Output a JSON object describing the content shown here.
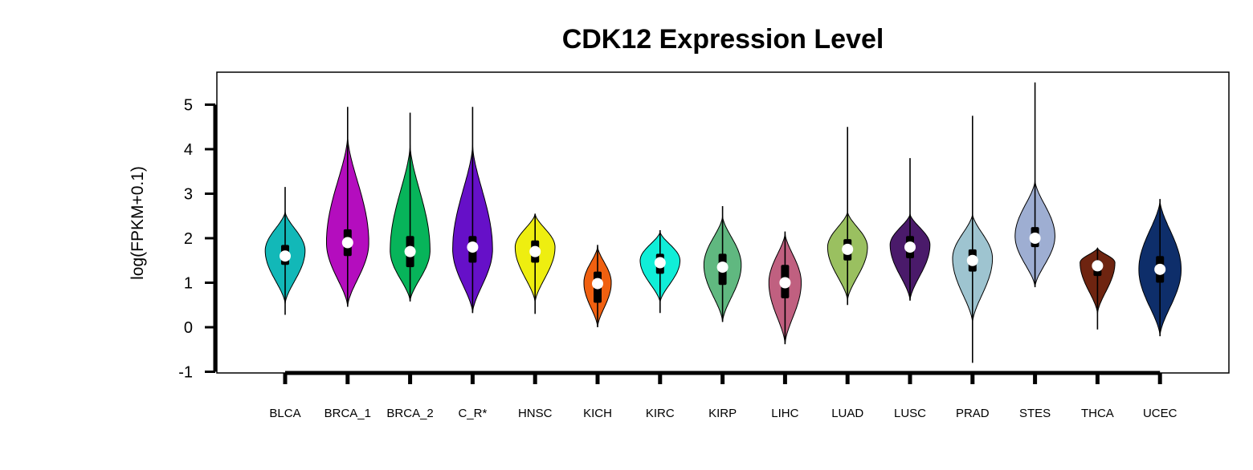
{
  "chart_data": {
    "type": "violin",
    "title": "CDK12 Expression Level",
    "xlabel": "",
    "ylabel": "log(FPKM+0.1)",
    "ylim": [
      -1,
      5
    ],
    "yticks": [
      -1,
      0,
      1,
      2,
      3,
      4,
      5
    ],
    "grid": false,
    "legend": "none",
    "categories": [
      "BLCA",
      "BRCA_1",
      "BRCA_2",
      "C_R*",
      "HNSC",
      "KICH",
      "KIRC",
      "KIRP",
      "LIHC",
      "LUAD",
      "LUSC",
      "PRAD",
      "STES",
      "THCA",
      "UCEC"
    ],
    "colors": [
      "#12B8B8",
      "#B40DBE",
      "#07B45A",
      "#6610C8",
      "#EEEE10",
      "#F06010",
      "#10EED8",
      "#60B880",
      "#C06080",
      "#9AC060",
      "#4A1A6A",
      "#9EC4D0",
      "#9EAED2",
      "#6E2410",
      "#0E2E6A"
    ],
    "series": [
      {
        "category": "BLCA",
        "min": 0.28,
        "q1": 1.4,
        "median": 1.6,
        "q3": 1.85,
        "max": 3.15,
        "peak": 1.72,
        "violin_bottom": 0.52,
        "violin_top": 2.6,
        "width": 0.8
      },
      {
        "category": "BRCA_1",
        "min": 0.46,
        "q1": 1.6,
        "median": 1.9,
        "q3": 2.2,
        "max": 4.95,
        "peak": 1.9,
        "violin_bottom": 0.46,
        "violin_top": 4.3,
        "width": 0.85
      },
      {
        "category": "BRCA_2",
        "min": 0.58,
        "q1": 1.35,
        "median": 1.7,
        "q3": 2.05,
        "max": 4.82,
        "peak": 1.72,
        "violin_bottom": 0.58,
        "violin_top": 4.1,
        "width": 0.8
      },
      {
        "category": "C_R*",
        "min": 0.32,
        "q1": 1.45,
        "median": 1.8,
        "q3": 2.05,
        "max": 4.95,
        "peak": 1.75,
        "violin_bottom": 0.32,
        "violin_top": 4.1,
        "width": 0.8
      },
      {
        "category": "HNSC",
        "min": 0.3,
        "q1": 1.45,
        "median": 1.7,
        "q3": 1.95,
        "max": 2.55,
        "peak": 1.8,
        "violin_bottom": 0.55,
        "violin_top": 2.55,
        "width": 0.8
      },
      {
        "category": "KICH",
        "min": 0.0,
        "q1": 0.55,
        "median": 0.98,
        "q3": 1.25,
        "max": 1.85,
        "peak": 1.0,
        "violin_bottom": 0.0,
        "violin_top": 1.82,
        "width": 0.55
      },
      {
        "category": "KIRC",
        "min": 0.32,
        "q1": 1.2,
        "median": 1.45,
        "q3": 1.65,
        "max": 2.18,
        "peak": 1.5,
        "violin_bottom": 0.55,
        "violin_top": 2.15,
        "width": 0.8
      },
      {
        "category": "KIRP",
        "min": 0.12,
        "q1": 0.95,
        "median": 1.35,
        "q3": 1.65,
        "max": 2.72,
        "peak": 1.4,
        "violin_bottom": 0.12,
        "violin_top": 2.5,
        "width": 0.75
      },
      {
        "category": "LIHC",
        "min": -0.38,
        "q1": 0.65,
        "median": 1.0,
        "q3": 1.4,
        "max": 2.15,
        "peak": 1.0,
        "violin_bottom": -0.38,
        "violin_top": 2.12,
        "width": 0.65
      },
      {
        "category": "LUAD",
        "min": 0.5,
        "q1": 1.5,
        "median": 1.75,
        "q3": 1.98,
        "max": 4.5,
        "peak": 1.8,
        "violin_bottom": 0.6,
        "violin_top": 2.6,
        "width": 0.8
      },
      {
        "category": "LUSC",
        "min": 0.6,
        "q1": 1.55,
        "median": 1.8,
        "q3": 2.05,
        "max": 3.8,
        "peak": 1.85,
        "violin_bottom": 0.6,
        "violin_top": 2.55,
        "width": 0.8
      },
      {
        "category": "PRAD",
        "min": -0.8,
        "q1": 1.25,
        "median": 1.5,
        "q3": 1.75,
        "max": 4.75,
        "peak": 1.55,
        "violin_bottom": 0.1,
        "violin_top": 2.55,
        "width": 0.8
      },
      {
        "category": "STES",
        "min": 0.9,
        "q1": 1.8,
        "median": 2.0,
        "q3": 2.25,
        "max": 5.5,
        "peak": 2.05,
        "violin_bottom": 0.9,
        "violin_top": 3.3,
        "width": 0.8
      },
      {
        "category": "THCA",
        "min": -0.05,
        "q1": 1.15,
        "median": 1.38,
        "q3": 1.5,
        "max": 1.78,
        "peak": 1.45,
        "violin_bottom": 0.3,
        "violin_top": 1.78,
        "width": 0.7
      },
      {
        "category": "UCEC",
        "min": -0.2,
        "q1": 1.0,
        "median": 1.3,
        "q3": 1.6,
        "max": 2.88,
        "peak": 1.3,
        "violin_bottom": -0.2,
        "violin_top": 2.85,
        "width": 0.85
      }
    ]
  }
}
